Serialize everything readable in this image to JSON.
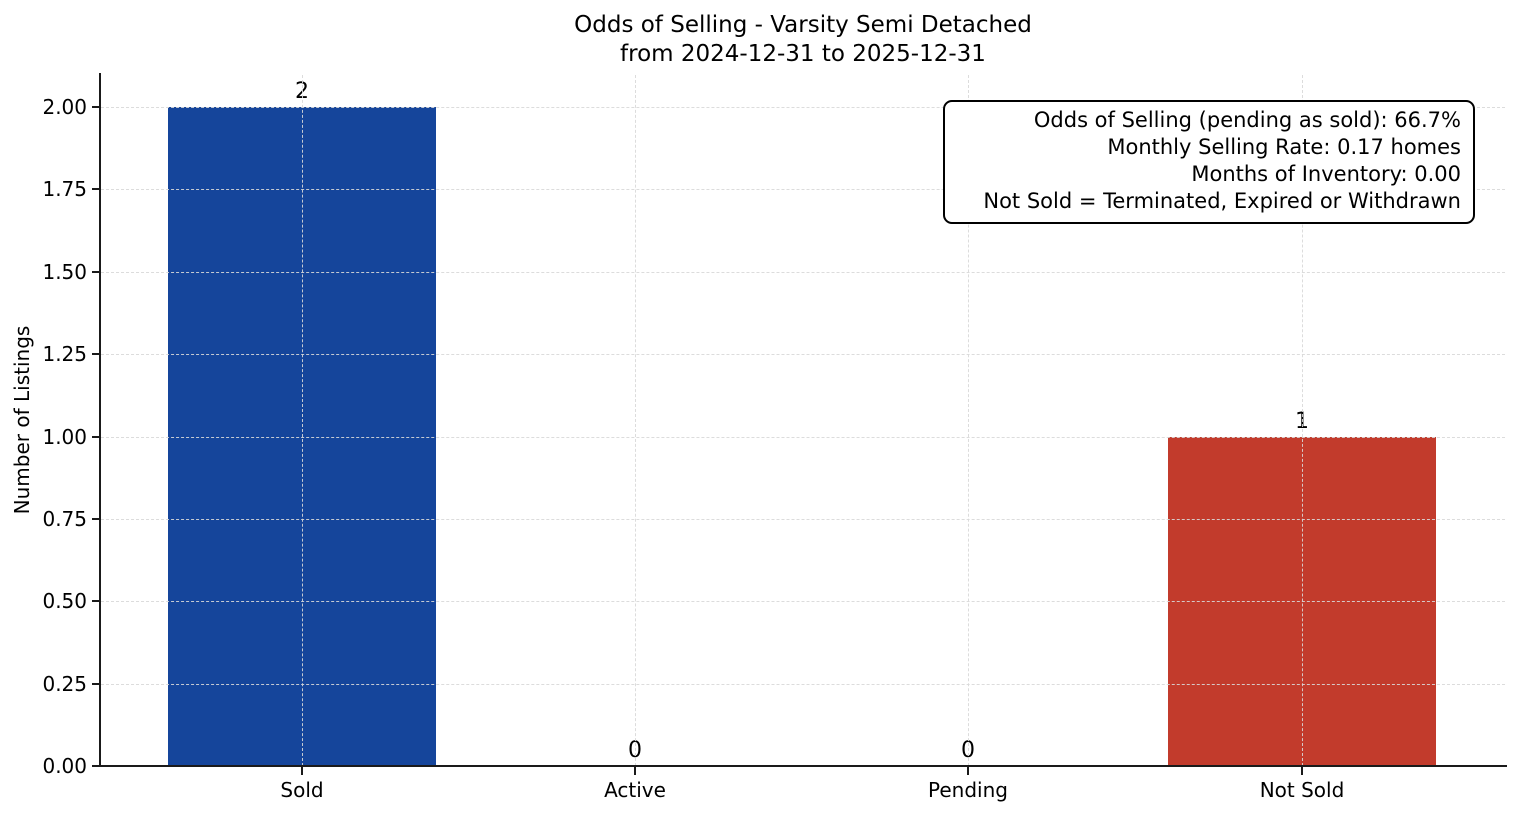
{
  "chart_data": {
    "type": "bar",
    "title": "Odds of Selling - Varsity Semi Detached",
    "subtitle": "from 2024-12-31 to 2025-12-31",
    "ylabel": "Number of Listings",
    "xlabel": "",
    "categories": [
      "Sold",
      "Active",
      "Pending",
      "Not Sold"
    ],
    "values": [
      2,
      0,
      0,
      1
    ],
    "value_labels": [
      "2",
      "0",
      "0",
      "1"
    ],
    "bar_colors": [
      "#15459b",
      null,
      null,
      "#c23b2c"
    ],
    "ylim": [
      0,
      2.1
    ],
    "yticks": [
      0,
      0.25,
      0.5,
      0.75,
      1,
      1.25,
      1.5,
      1.75,
      2
    ],
    "ytick_labels": [
      "0.00",
      "0.25",
      "0.50",
      "0.75",
      "1.00",
      "1.25",
      "1.50",
      "1.75",
      "2.00"
    ],
    "grid": true,
    "grid_style": "dashed",
    "legend_position": "none",
    "annotation_box": {
      "lines": [
        "Odds of Selling (pending as sold): 66.7%",
        "Monthly Selling Rate: 0.17 homes",
        "Months of Inventory: 0.00",
        "Not Sold = Terminated, Expired or Withdrawn"
      ]
    }
  }
}
